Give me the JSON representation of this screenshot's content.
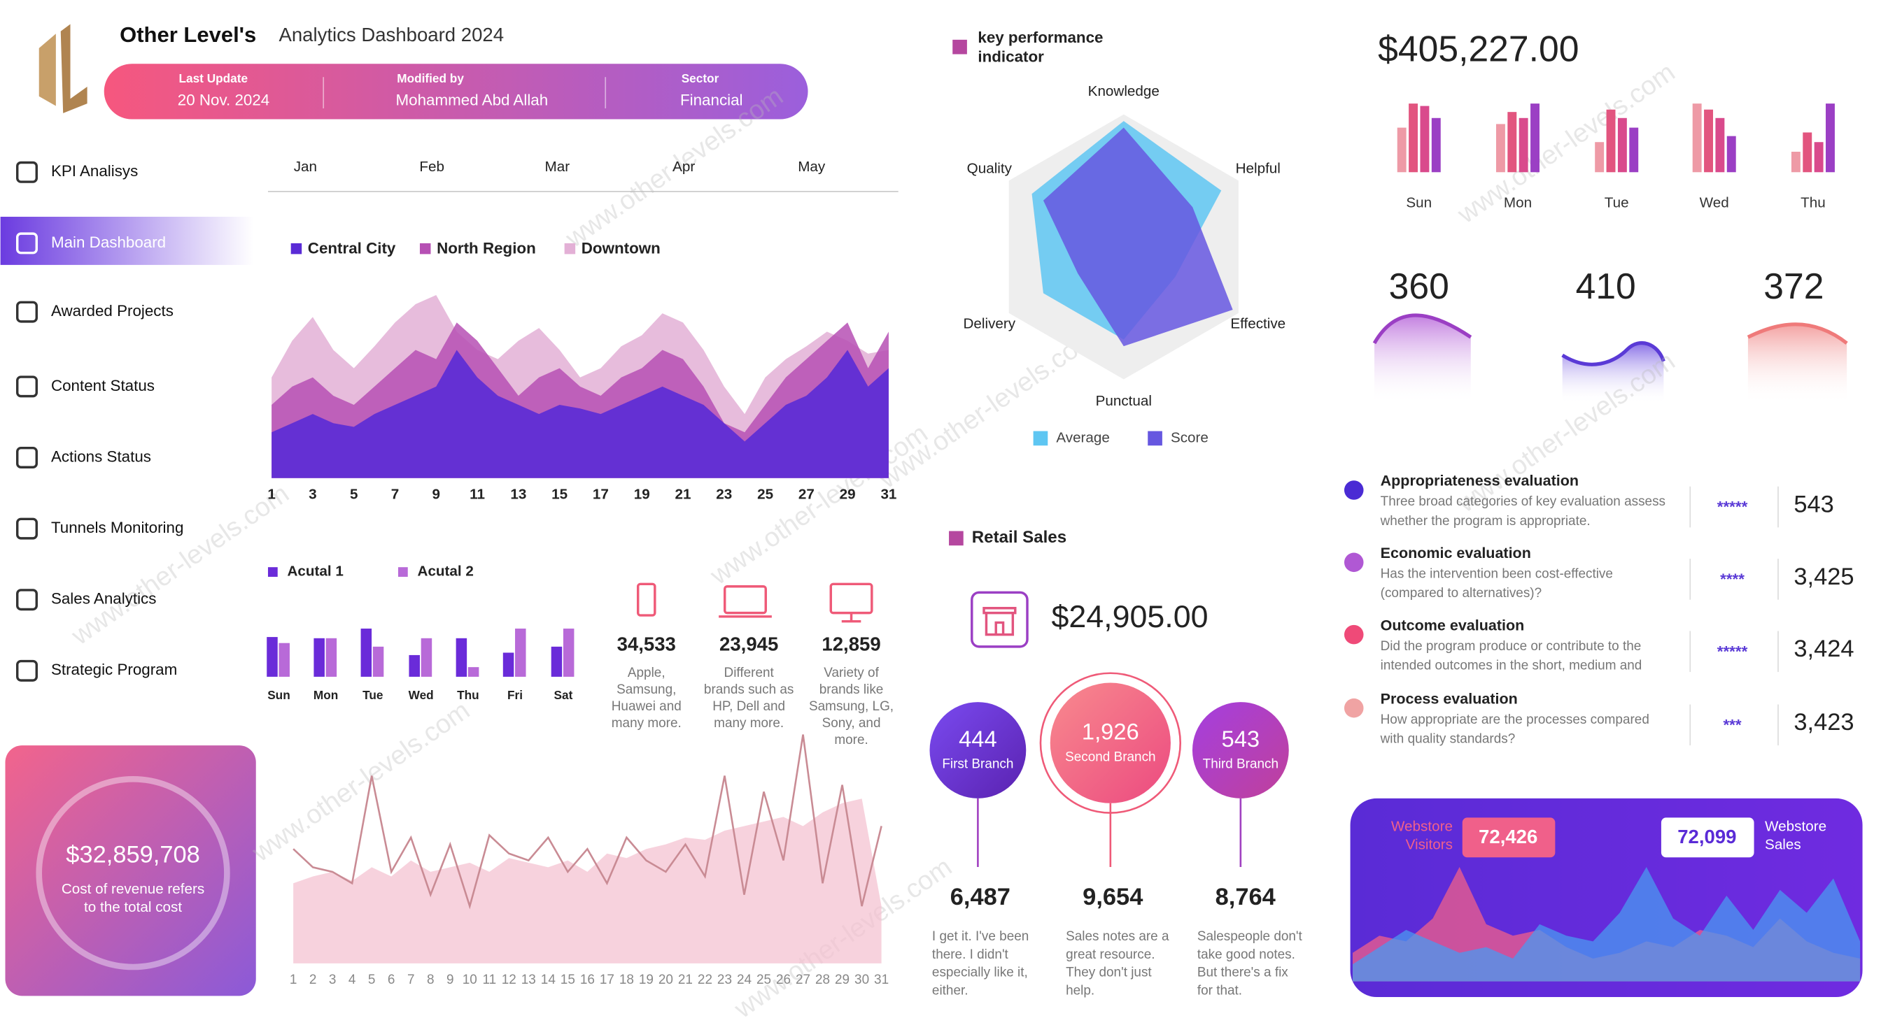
{
  "header": {
    "brand": "Other Level's",
    "title": "Analytics Dashboard 2024",
    "last_update_label": "Last Update",
    "last_update": "20 Nov. 2024",
    "modified_label": "Modified by",
    "modified": "Mohammed Abd Allah",
    "sector_label": "Sector",
    "sector": "Financial"
  },
  "nav": {
    "items": [
      "KPI Analisys",
      "Main Dashboard",
      "Awarded Projects",
      "Content Status",
      "Actions Status",
      "Tunnels Monitoring",
      "Sales Analytics",
      "Strategic Program"
    ],
    "active": 1
  },
  "cost_card": {
    "value": "$32,859,708",
    "text_lines": [
      "Cost of revenue refers",
      "to the total cost"
    ]
  },
  "month_tabs": [
    "Jan",
    "Feb",
    "Mar",
    "Apr",
    "May"
  ],
  "watermark": "www.other-levels.com",
  "devices": [
    {
      "value": "34,533",
      "text_lines": [
        "Apple,",
        "Samsung,",
        "Huawei and",
        "many more."
      ]
    },
    {
      "value": "23,945",
      "text_lines": [
        "Different",
        "brands such as",
        "HP, Dell and",
        "many more."
      ]
    },
    {
      "value": "12,859",
      "text_lines": [
        "Variety of",
        "brands like",
        "Samsung, LG,",
        "Sony, and",
        "more."
      ]
    }
  ],
  "kpi_title_lines": [
    "key performance",
    "indicator"
  ],
  "retail": {
    "title": "Retail Sales",
    "total": "$24,905.00",
    "branches": [
      {
        "value": "444",
        "name": "First Branch",
        "total": "6,487",
        "note_lines": [
          "I get it. I've been",
          "there. I didn't",
          "especially like it,",
          "either."
        ]
      },
      {
        "value": "1,926",
        "name": "Second Branch",
        "total": "9,654",
        "note_lines": [
          "Sales notes are a",
          "great resource.",
          "They don't just",
          "help."
        ]
      },
      {
        "value": "543",
        "name": "Third Branch",
        "total": "8,764",
        "note_lines": [
          "Salespeople don't",
          "take good notes.",
          "But there's a fix",
          "for that."
        ]
      }
    ]
  },
  "revenue_total": "$405,227.00",
  "peaks": [
    360,
    410,
    372
  ],
  "evaluations": [
    {
      "title": "Appropriateness evaluation",
      "text_lines": [
        "Three broad categories of key evaluation assess",
        "whether the program is appropriate."
      ],
      "stars": "*****",
      "value": "543",
      "color": "#4a2bd4"
    },
    {
      "title": "Economic evaluation",
      "text_lines": [
        "Has the intervention been cost-effective",
        "(compared to alternatives)?"
      ],
      "stars": "****",
      "value": "3,425",
      "color": "#b058d4"
    },
    {
      "title": "Outcome evaluation",
      "text_lines": [
        "Did the program produce or contribute to the",
        "intended outcomes in the short, medium and"
      ],
      "stars": "*****",
      "value": "3,424",
      "color": "#ef4a78"
    },
    {
      "title": "Process evaluation",
      "text_lines": [
        "How appropriate are the processes compared",
        "with quality standards?"
      ],
      "stars": "***",
      "value": "3,423",
      "color": "#f0a3a3"
    }
  ],
  "webstore": {
    "visitors_lines": [
      "Webstore",
      "Visitors"
    ],
    "visitors": "72,426",
    "sales_lines": [
      "Webstore",
      "Sales"
    ],
    "sales": "72,099"
  },
  "chart_data": [
    {
      "type": "area",
      "x": [
        1,
        2,
        3,
        4,
        5,
        6,
        7,
        8,
        9,
        10,
        11,
        12,
        13,
        14,
        15,
        16,
        17,
        18,
        19,
        20,
        21,
        22,
        23,
        24,
        25,
        26,
        27,
        28,
        29,
        30,
        31
      ],
      "xticks": [
        1,
        3,
        5,
        7,
        9,
        11,
        13,
        15,
        17,
        19,
        21,
        23,
        25,
        27,
        29,
        31
      ],
      "ylim": [
        0,
        100
      ],
      "series": [
        {
          "name": "Downtown",
          "color": "#e3b0d6",
          "values": [
            55,
            75,
            88,
            70,
            60,
            72,
            85,
            95,
            100,
            80,
            70,
            65,
            75,
            82,
            70,
            55,
            60,
            72,
            78,
            90,
            85,
            70,
            50,
            35,
            55,
            65,
            72,
            80,
            75,
            68,
            70
          ]
        },
        {
          "name": "North Region",
          "color": "#b650b4",
          "values": [
            40,
            50,
            55,
            45,
            40,
            50,
            60,
            70,
            65,
            85,
            75,
            60,
            45,
            55,
            60,
            50,
            45,
            55,
            60,
            70,
            65,
            50,
            30,
            25,
            40,
            55,
            65,
            75,
            85,
            60,
            80
          ]
        },
        {
          "name": "Central City",
          "color": "#5a2bd6",
          "values": [
            25,
            30,
            35,
            30,
            28,
            35,
            40,
            45,
            50,
            70,
            55,
            45,
            40,
            35,
            40,
            38,
            35,
            40,
            45,
            50,
            45,
            40,
            30,
            20,
            30,
            40,
            45,
            55,
            70,
            50,
            60
          ]
        }
      ]
    },
    {
      "type": "bar",
      "categories": [
        "Sun",
        "Mon",
        "Tue",
        "Wed",
        "Thu",
        "Fri",
        "Sat"
      ],
      "ylim": [
        0,
        45
      ],
      "series": [
        {
          "name": "Acutal 1",
          "color": "#6a2bd9",
          "values": [
            33,
            32,
            40,
            18,
            32,
            20,
            25
          ]
        },
        {
          "name": "Acutal 2",
          "color": "#b86ad8",
          "values": [
            28,
            32,
            25,
            32,
            8,
            40,
            40
          ]
        }
      ]
    },
    {
      "type": "line",
      "x": [
        1,
        2,
        3,
        4,
        5,
        6,
        7,
        8,
        9,
        10,
        11,
        12,
        13,
        14,
        15,
        16,
        17,
        18,
        19,
        20,
        21,
        22,
        23,
        24,
        25,
        26,
        27,
        28,
        29,
        30,
        31
      ],
      "xticks": [
        1,
        2,
        3,
        4,
        5,
        6,
        7,
        8,
        9,
        10,
        11,
        12,
        13,
        14,
        15,
        16,
        17,
        18,
        19,
        20,
        21,
        22,
        23,
        24,
        25,
        26,
        27,
        28,
        29,
        30,
        31
      ],
      "ylim": [
        0,
        100
      ],
      "series": [
        {
          "color": "#f4bfcf",
          "fill": true,
          "values": [
            35,
            38,
            40,
            36,
            42,
            38,
            45,
            40,
            42,
            44,
            40,
            46,
            44,
            42,
            45,
            40,
            48,
            46,
            50,
            52,
            55,
            54,
            58,
            60,
            62,
            64,
            60,
            66,
            70,
            72,
            25
          ]
        },
        {
          "color": "#c98b94",
          "values": [
            50,
            42,
            40,
            35,
            82,
            40,
            55,
            30,
            52,
            25,
            56,
            48,
            45,
            55,
            40,
            50,
            35,
            55,
            45,
            40,
            52,
            38,
            82,
            30,
            75,
            45,
            100,
            35,
            78,
            25,
            60
          ]
        }
      ]
    },
    {
      "type": "radar",
      "categories": [
        "Knowledge",
        "Helpful",
        "Effective",
        "Punctual",
        "Delivery",
        "Quality"
      ],
      "rlim": [
        0,
        100
      ],
      "series": [
        {
          "name": "Average",
          "color": "#5ec6f2",
          "values": [
            95,
            85,
            45,
            70,
            70,
            80
          ]
        },
        {
          "name": "Score",
          "color": "#6657e0",
          "values": [
            90,
            60,
            95,
            75,
            40,
            70
          ]
        }
      ]
    },
    {
      "type": "bar",
      "categories": [
        "Sun",
        "Mon",
        "Tue",
        "Wed",
        "Thu"
      ],
      "ylim": [
        0,
        60
      ],
      "series": [
        {
          "color": "#ee9aa6",
          "values": [
            37,
            40,
            25,
            57,
            17
          ]
        },
        {
          "color": "#e2557f",
          "values": [
            57,
            50,
            52,
            52,
            33
          ]
        },
        {
          "color": "#d94a8c",
          "values": [
            55,
            45,
            45,
            45,
            25
          ]
        },
        {
          "color": "#9b3fc4",
          "values": [
            45,
            57,
            37,
            30,
            57
          ]
        }
      ]
    },
    {
      "type": "area",
      "x": [
        1,
        2,
        3,
        4,
        5,
        6,
        7,
        8,
        9,
        10,
        11,
        12,
        13,
        14,
        15,
        16,
        17,
        18,
        19,
        20
      ],
      "ylim": [
        0,
        100
      ],
      "series": [
        {
          "color": "#f0608a",
          "values": [
            25,
            40,
            35,
            55,
            100,
            50,
            40,
            45,
            30,
            20,
            25,
            35,
            30,
            45,
            40,
            30,
            55,
            35,
            25,
            20
          ]
        },
        {
          "color": "#4a9af0",
          "values": [
            15,
            30,
            45,
            35,
            25,
            30,
            20,
            50,
            40,
            35,
            60,
            100,
            55,
            40,
            75,
            45,
            80,
            60,
            90,
            35
          ]
        }
      ]
    }
  ]
}
